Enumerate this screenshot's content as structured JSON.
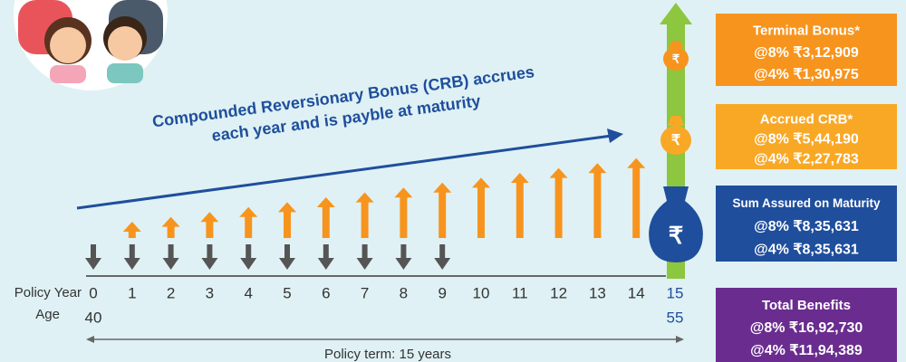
{
  "header_text": {
    "line1": "Compounded Reversionary Bonus (CRB) accrues",
    "line2": "each year and is payble at maturity"
  },
  "timeline": {
    "row_labels": [
      "Policy Year",
      "Age"
    ],
    "years": [
      "0",
      "1",
      "2",
      "3",
      "4",
      "5",
      "6",
      "7",
      "8",
      "9",
      "10",
      "11",
      "12",
      "13",
      "14",
      "15"
    ],
    "ages": [
      "40",
      "55"
    ],
    "term_label": "Policy term: 15 years"
  },
  "boxes": [
    {
      "title": "Terminal Bonus*",
      "lines": [
        "@8% ₹3,12,909",
        "@4% ₹1,30,975"
      ]
    },
    {
      "title": "Accrued CRB*",
      "lines": [
        "@8% ₹5,44,190",
        "@4% ₹2,27,783"
      ]
    },
    {
      "title": "Sum Assured on Maturity",
      "lines": [
        "@8% ₹8,35,631",
        "@4% ₹8,35,631"
      ]
    },
    {
      "title": "Total Benefits",
      "lines": [
        "@8% ₹16,92,730",
        "@4% ₹11,94,389"
      ]
    }
  ]
}
